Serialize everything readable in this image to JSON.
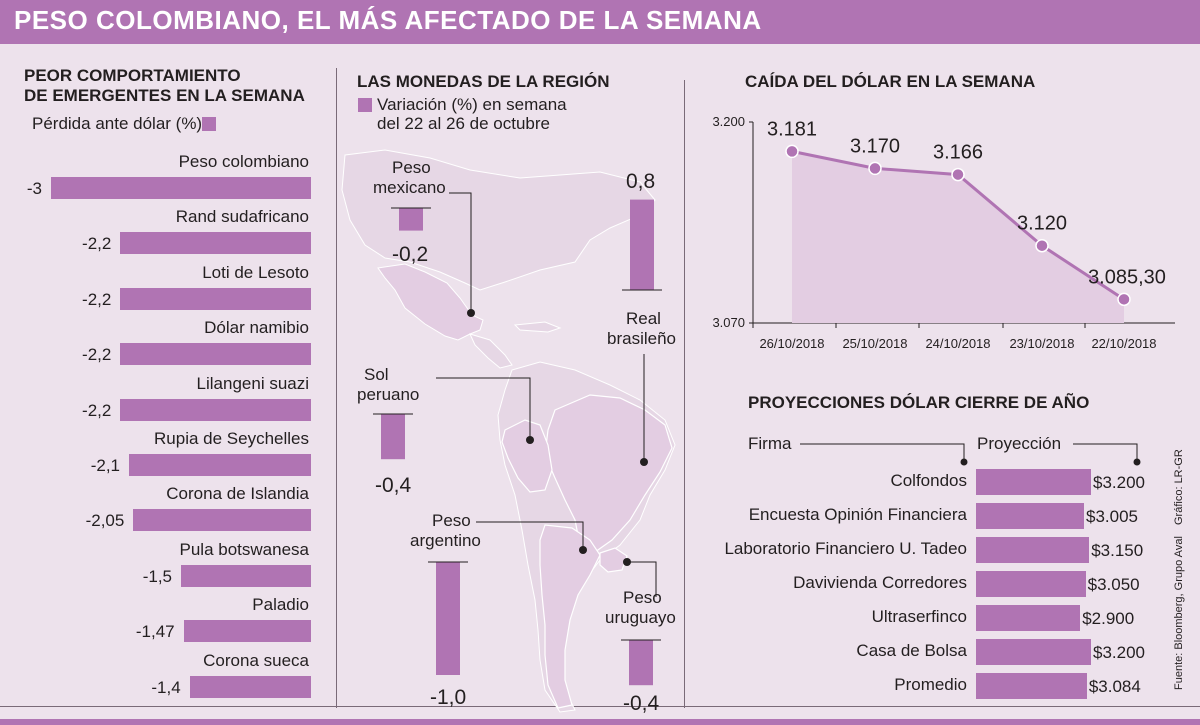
{
  "title": "PESO COLOMBIANO, EL MÁS AFECTADO DE LA SEMANA",
  "colors": {
    "accent": "#b074b3",
    "background": "#ede2ec",
    "map_fill": "#e3cde2"
  },
  "left_panel": {
    "title_line1": "PEOR COMPORTAMIENTO",
    "title_line2": "DE EMERGENTES EN LA SEMANA",
    "legend": "Pérdida ante dólar (%)"
  },
  "region_panel": {
    "title": "LAS MONEDAS DE LA REGIÓN",
    "legend_line1": "Variación (%) en semana",
    "legend_line2": "del 22 al 26 de octubre",
    "currencies": [
      {
        "name_line1": "Peso",
        "name_line2": "mexicano",
        "value": -0.2,
        "label": "-0,2"
      },
      {
        "name_line1": "Real",
        "name_line2": "brasileño",
        "value": 0.8,
        "label": "0,8"
      },
      {
        "name_line1": "Sol",
        "name_line2": "peruano",
        "value": -0.4,
        "label": "-0,4"
      },
      {
        "name_line1": "Peso",
        "name_line2": "argentino",
        "value": -1.0,
        "label": "-1,0"
      },
      {
        "name_line1": "Peso",
        "name_line2": "uruguayo",
        "value": -0.4,
        "label": "-0,4"
      }
    ]
  },
  "projections": {
    "title": "PROYECCIONES DÓLAR CIERRE DE AÑO",
    "col_firm": "Firma",
    "col_projection": "Proyección",
    "rows": [
      {
        "firm": "Colfondos",
        "value": 3200,
        "label": "$3.200"
      },
      {
        "firm": "Encuesta Opinión Financiera",
        "value": 3005,
        "label": "$3.005"
      },
      {
        "firm": "Laboratorio Financiero U. Tadeo",
        "value": 3150,
        "label": "$3.150"
      },
      {
        "firm": "Davivienda Corredores",
        "value": 3050,
        "label": "$3.050"
      },
      {
        "firm": "Ultraserfinco",
        "value": 2900,
        "label": "$2.900"
      },
      {
        "firm": "Casa de Bolsa",
        "value": 3200,
        "label": "$3.200"
      },
      {
        "firm": "Promedio",
        "value": 3084,
        "label": "$3.084"
      }
    ]
  },
  "credits": {
    "source": "Fuente: Bloomberg, Grupo Aval",
    "graphic": "Gráfico: LR-GR"
  },
  "chart_data": [
    {
      "type": "bar",
      "orientation": "horizontal",
      "title": "PEOR COMPORTAMIENTO DE EMERGENTES EN LA SEMANA",
      "ylabel": "Pérdida ante dólar (%)",
      "categories": [
        "Peso colombiano",
        "Rand sudafricano",
        "Loti de Lesoto",
        "Dólar namibio",
        "Lilangeni suazi",
        "Rupia de Seychelles",
        "Corona de Islandia",
        "Pula botswanesa",
        "Paladio",
        "Corona sueca"
      ],
      "values": [
        -3,
        -2.2,
        -2.2,
        -2.2,
        -2.2,
        -2.1,
        -2.05,
        -1.5,
        -1.47,
        -1.4
      ],
      "value_labels": [
        "-3",
        "-2,2",
        "-2,2",
        "-2,2",
        "-2,2",
        "-2,1",
        "-2,05",
        "-1,5",
        "-1,47",
        "-1,4"
      ],
      "xlim": [
        -3,
        0
      ]
    },
    {
      "type": "area",
      "title": "CAÍDA DEL DÓLAR EN LA SEMANA",
      "x": [
        "26/10/2018",
        "25/10/2018",
        "24/10/2018",
        "23/10/2018",
        "22/10/2018"
      ],
      "values": [
        3181,
        3170,
        3166,
        3120,
        3085.3
      ],
      "value_labels": [
        "3.181",
        "3.170",
        "3.166",
        "3.120",
        "3.085,30"
      ],
      "ylim": [
        3070,
        3200
      ],
      "yticks": [
        3070,
        3200
      ],
      "ytick_labels": [
        "3.070",
        "3.200"
      ]
    },
    {
      "type": "bar",
      "title": "LAS MONEDAS DE LA REGIÓN",
      "categories": [
        "Peso mexicano",
        "Real brasileño",
        "Sol peruano",
        "Peso argentino",
        "Peso uruguayo"
      ],
      "values": [
        -0.2,
        0.8,
        -0.4,
        -1.0,
        -0.4
      ]
    },
    {
      "type": "bar",
      "orientation": "horizontal",
      "title": "PROYECCIONES DÓLAR CIERRE DE AÑO",
      "categories": [
        "Colfondos",
        "Encuesta Opinión Financiera",
        "Laboratorio Financiero U. Tadeo",
        "Davivienda Corredores",
        "Ultraserfinco",
        "Casa de Bolsa",
        "Promedio"
      ],
      "values": [
        3200,
        3005,
        3150,
        3050,
        2900,
        3200,
        3084
      ]
    }
  ]
}
